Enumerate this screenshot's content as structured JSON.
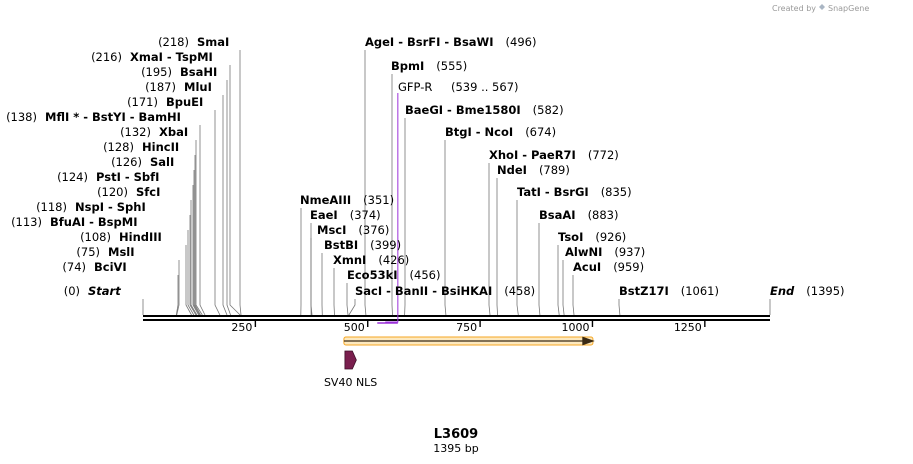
{
  "credit": {
    "created_by": "Created by",
    "app": "SnapGene"
  },
  "plasmid": {
    "name": "L3609",
    "size_label": "1395 bp",
    "length_bp": 1395
  },
  "colors": {
    "primer": "#9b30d9",
    "feature_arrow": "#f5a623",
    "nls": "#7a1f4e",
    "backbone": "#000000",
    "connector": "#777777"
  },
  "scale": {
    "ticks": [
      250,
      500,
      750,
      1000,
      1250
    ]
  },
  "sites": [
    {
      "name": "SmaI",
      "pos": "(218)",
      "bp": 218
    },
    {
      "name": "XmaI",
      "pos": "(216)",
      "bp": 216,
      "others": [
        "TspMI"
      ]
    },
    {
      "name": "BsaHI",
      "pos": "(195)",
      "bp": 195
    },
    {
      "name": "MluI",
      "pos": "(187)",
      "bp": 187
    },
    {
      "name": "BpuEI",
      "pos": "(171)",
      "bp": 171
    },
    {
      "name": "MflI",
      "pos": "(138)",
      "bp": 138,
      "star": "*",
      "others": [
        "BstYI",
        "BamHI"
      ]
    },
    {
      "name": "XbaI",
      "pos": "(132)",
      "bp": 132
    },
    {
      "name": "HincII",
      "pos": "(128)",
      "bp": 128
    },
    {
      "name": "SalI",
      "pos": "(126)",
      "bp": 126
    },
    {
      "name": "PstI",
      "pos": "(124)",
      "bp": 124,
      "others": [
        "SbfI"
      ]
    },
    {
      "name": "SfcI",
      "pos": "(120)",
      "bp": 120
    },
    {
      "name": "NspI",
      "pos": "(118)",
      "bp": 118,
      "others": [
        "SphI"
      ]
    },
    {
      "name": "BfuAI",
      "pos": "(113)",
      "bp": 113,
      "others": [
        "BspMI"
      ]
    },
    {
      "name": "HindIII",
      "pos": "(108)",
      "bp": 108
    },
    {
      "name": "MslI",
      "pos": "(75)",
      "bp": 75
    },
    {
      "name": "BciVI",
      "pos": "(74)",
      "bp": 74
    },
    {
      "name": "Start",
      "pos": "(0)",
      "bp": 0,
      "italic": true
    },
    {
      "name": "AgeI",
      "pos": "(496)",
      "bp": 496,
      "others": [
        "BsrFI",
        "BsaWI"
      ]
    },
    {
      "name": "BpmI",
      "pos": "(555)",
      "bp": 555
    },
    {
      "name": "BaeGI",
      "pos": "(582)",
      "bp": 582,
      "others": [
        "Bme1580I"
      ]
    },
    {
      "name": "BtgI",
      "pos": "(674)",
      "bp": 674,
      "others": [
        "NcoI"
      ]
    },
    {
      "name": "XhoI",
      "pos": "(772)",
      "bp": 772,
      "others": [
        "PaeR7I"
      ]
    },
    {
      "name": "NdeI",
      "pos": "(789)",
      "bp": 789
    },
    {
      "name": "TatI",
      "pos": "(835)",
      "bp": 835,
      "others": [
        "BsrGI"
      ]
    },
    {
      "name": "BsaAI",
      "pos": "(883)",
      "bp": 883
    },
    {
      "name": "TsoI",
      "pos": "(926)",
      "bp": 926
    },
    {
      "name": "AlwNI",
      "pos": "(937)",
      "bp": 937
    },
    {
      "name": "AcuI",
      "pos": "(959)",
      "bp": 959
    },
    {
      "name": "BstZ17I",
      "pos": "(1061)",
      "bp": 1061
    },
    {
      "name": "End",
      "pos": "(1395)",
      "bp": 1395,
      "italic": true
    },
    {
      "name": "NmeAIII",
      "pos": "(351)",
      "bp": 351
    },
    {
      "name": "EaeI",
      "pos": "(374)",
      "bp": 374
    },
    {
      "name": "MscI",
      "pos": "(376)",
      "bp": 376
    },
    {
      "name": "BstBI",
      "pos": "(399)",
      "bp": 399
    },
    {
      "name": "XmnI",
      "pos": "(426)",
      "bp": 426
    },
    {
      "name": "Eco53kI",
      "pos": "(456)",
      "bp": 456
    },
    {
      "name": "SacI",
      "pos": "(458)",
      "bp": 458,
      "others": [
        "BanII",
        "BsiHKAI"
      ]
    }
  ],
  "primer": {
    "name": "GFP-R",
    "range": "(539 .. 567)",
    "start": 539,
    "end": 567
  },
  "features": [
    {
      "name": "SV40 NLS",
      "start": 447,
      "end": 468
    },
    {
      "name": "",
      "start": 447,
      "end": 1001
    }
  ]
}
